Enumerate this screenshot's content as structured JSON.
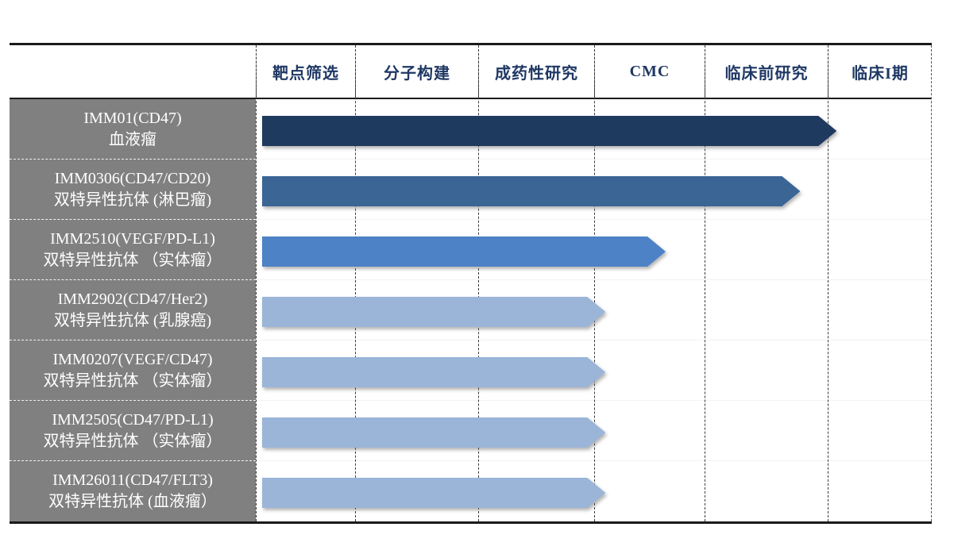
{
  "palette": {
    "border_black": "#1a1a1a",
    "header_text": "#1f3864",
    "label_panel_bg": "#808080",
    "label_panel_text": "#ffffff",
    "grid_dash_line": "#3a3a3a",
    "row_divider_light": "#f2f2f2",
    "arrow_dark_navy": "#1f3a5f",
    "arrow_medium_blue": "#3a6595",
    "arrow_bright_blue": "#4d82c6",
    "arrow_light_blue": "#9bb5d9"
  },
  "chart": {
    "stages": [
      {
        "label": "靶点筛选"
      },
      {
        "label": "分子构建"
      },
      {
        "label": "成药性研究"
      },
      {
        "label": "CMC"
      },
      {
        "label": "临床前研究"
      },
      {
        "label": "临床I期"
      }
    ],
    "rows": [
      {
        "program": "IMM01(CD47)",
        "indication": "血液瘤",
        "color": "#1f3a5f",
        "progress_pct": 85.0
      },
      {
        "program": "IMM0306(CD47/CD20)",
        "indication": "双特异性抗体 (淋巴瘤)",
        "color": "#3a6595",
        "progress_pct": 79.6
      },
      {
        "program": "IMM2510(VEGF/PD-L1)",
        "indication": "双特异性抗体 （实体瘤）",
        "color": "#4d82c6",
        "progress_pct": 59.7
      },
      {
        "program": "IMM2902(CD47/Her2)",
        "indication": "双特异性抗体 (乳腺癌)",
        "color": "#9bb5d9",
        "progress_pct": 50.8
      },
      {
        "program": "IMM0207(VEGF/CD47)",
        "indication": "双特异性抗体 （实体瘤）",
        "color": "#9bb5d9",
        "progress_pct": 50.8
      },
      {
        "program": "IMM2505(CD47/PD-L1)",
        "indication": "双特异性抗体 （实体瘤）",
        "color": "#9bb5d9",
        "progress_pct": 50.8
      },
      {
        "program": "IMM26011(CD47/FLT3)",
        "indication": "双特异性抗体 (血液瘤）",
        "color": "#9bb5d9",
        "progress_pct": 50.8
      }
    ]
  },
  "chart_data": {
    "type": "bar",
    "variant": "horizontal pipeline (Gantt-style) development chart",
    "orientation": "horizontal",
    "stage_columns": [
      "靶点筛选",
      "分子构建",
      "成药性研究",
      "CMC",
      "临床前研究",
      "临床I期"
    ],
    "categories": [
      "IMM01(CD47) 血液瘤",
      "IMM0306(CD47/CD20) 双特异性抗体 (淋巴瘤)",
      "IMM2510(VEGF/PD-L1) 双特异性抗体 （实体瘤）",
      "IMM2902(CD47/Her2) 双特异性抗体 (乳腺癌)",
      "IMM0207(VEGF/CD47) 双特异性抗体 （实体瘤）",
      "IMM2505(CD47/PD-L1) 双特异性抗体 （实体瘤）",
      "IMM26011(CD47/FLT3) 双特异性抗体 (血液瘤）"
    ],
    "values": [
      5.1,
      4.8,
      3.65,
      3.1,
      3.1,
      3.1,
      3.1
    ],
    "value_meaning": "development stages completed out of 6 stage columns",
    "bar_colors": [
      "#1f3a5f",
      "#3a6595",
      "#4d82c6",
      "#9bb5d9",
      "#9bb5d9",
      "#9bb5d9",
      "#9bb5d9"
    ],
    "xlim": [
      0,
      6
    ],
    "grid": "dashed vertical stage separators",
    "legend": false,
    "title": ""
  }
}
